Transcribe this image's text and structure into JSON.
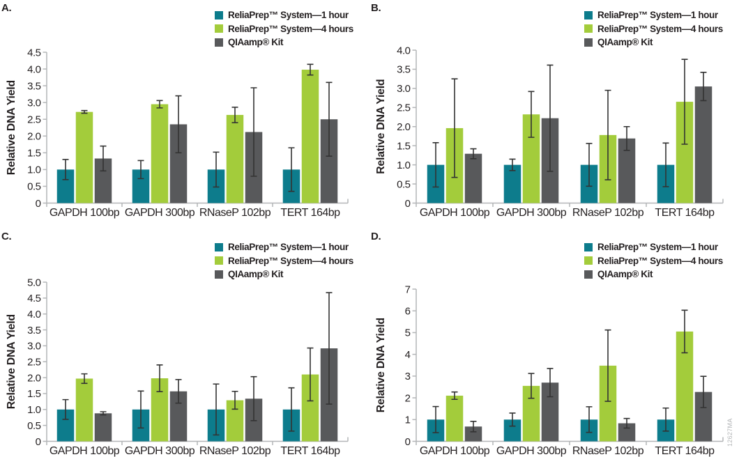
{
  "figure": {
    "watermark_code": "12627MA",
    "background": "#ffffff"
  },
  "colors": {
    "teal": "#0d7c8c",
    "green": "#a3cc3b",
    "gray": "#58595b",
    "axis": "#b3b5b7",
    "error": "#333333",
    "text": "#231f20",
    "watermark": "#b3b5b7"
  },
  "legend": {
    "position": "top-right",
    "items": [
      {
        "label": "ReliaPrep™ System—1 hour",
        "color_key": "teal"
      },
      {
        "label": "ReliaPrep™ System—4 hours",
        "color_key": "green"
      },
      {
        "label": "QIAamp® Kit",
        "color_key": "gray"
      }
    ]
  },
  "chart_data": [
    {
      "panel_label": "A.",
      "type": "bar",
      "title": "",
      "xlabel": "",
      "ylabel": "Relative DNA Yield",
      "grid": false,
      "legend_position": "top-right",
      "categories": [
        "GAPDH 100bp",
        "GAPDH 300bp",
        "RNaseP 102bp",
        "TERT 164bp"
      ],
      "ylim": [
        0,
        4.5
      ],
      "yticks": [
        0,
        0.5,
        1.0,
        1.5,
        2.0,
        2.5,
        3.0,
        3.5,
        4.0,
        4.5
      ],
      "ytick_labels": [
        "0",
        "0.5",
        "1.0",
        "1.5",
        "2.0",
        "2.5",
        "3.0",
        "3.5",
        "4.0",
        "4.5"
      ],
      "series": [
        {
          "name": "ReliaPrep™ System—1 hour",
          "color_key": "teal",
          "values": [
            1.0,
            1.0,
            1.0,
            1.0
          ],
          "errors": [
            0.3,
            0.27,
            0.52,
            0.65
          ]
        },
        {
          "name": "ReliaPrep™ System—4 hours",
          "color_key": "green",
          "values": [
            2.72,
            2.95,
            2.63,
            3.98
          ],
          "errors": [
            0.04,
            0.11,
            0.23,
            0.16
          ]
        },
        {
          "name": "QIAamp® Kit",
          "color_key": "gray",
          "values": [
            1.33,
            2.35,
            2.12,
            2.5
          ],
          "errors": [
            0.37,
            0.85,
            1.32,
            1.1
          ]
        }
      ]
    },
    {
      "panel_label": "B.",
      "type": "bar",
      "title": "",
      "xlabel": "",
      "ylabel": "Relative DNA Yield",
      "grid": false,
      "legend_position": "top-right",
      "categories": [
        "GAPDH 100bp",
        "GAPDH 300bp",
        "RNaseP 102bp",
        "TERT 164bp"
      ],
      "ylim": [
        0,
        4.0
      ],
      "yticks": [
        0,
        0.5,
        1.0,
        1.5,
        2.0,
        2.5,
        3.0,
        3.5,
        4.0
      ],
      "ytick_labels": [
        "0",
        "0.5",
        "1.0",
        "1.5",
        "2.0",
        "2.5",
        "3.0",
        "3.5",
        "4.0"
      ],
      "series": [
        {
          "name": "ReliaPrep™ System—1 hour",
          "color_key": "teal",
          "values": [
            1.0,
            1.0,
            1.0,
            1.0
          ],
          "errors": [
            0.58,
            0.15,
            0.56,
            0.57
          ]
        },
        {
          "name": "ReliaPrep™ System—4 hours",
          "color_key": "green",
          "values": [
            1.96,
            2.32,
            1.78,
            2.65
          ],
          "errors": [
            1.29,
            0.6,
            1.17,
            1.11
          ]
        },
        {
          "name": "QIAamp® Kit",
          "color_key": "gray",
          "values": [
            1.29,
            2.22,
            1.69,
            3.05
          ],
          "errors": [
            0.13,
            1.39,
            0.31,
            0.37
          ]
        }
      ]
    },
    {
      "panel_label": "C.",
      "type": "bar",
      "title": "",
      "xlabel": "",
      "ylabel": "Relative DNA Yield",
      "grid": false,
      "legend_position": "top-right",
      "categories": [
        "GAPDH 100bp",
        "GAPDH 300bp",
        "RNaseP 102bp",
        "TERT 164bp"
      ],
      "ylim": [
        0,
        5.0
      ],
      "yticks": [
        0,
        0.5,
        1.0,
        1.5,
        2.0,
        2.5,
        3.0,
        3.5,
        4.0,
        4.5,
        5.0
      ],
      "ytick_labels": [
        "0",
        "0.5",
        "1.0",
        "1.5",
        "2.0",
        "2.5",
        "3.0",
        "3.5",
        "4.0",
        "4.5",
        "5.0"
      ],
      "series": [
        {
          "name": "ReliaPrep™ System—1 hour",
          "color_key": "teal",
          "values": [
            1.0,
            1.0,
            1.0,
            1.0
          ],
          "errors": [
            0.31,
            0.58,
            0.8,
            0.68
          ]
        },
        {
          "name": "ReliaPrep™ System—4 hours",
          "color_key": "green",
          "values": [
            1.97,
            1.98,
            1.29,
            2.1
          ],
          "errors": [
            0.15,
            0.42,
            0.28,
            0.83
          ]
        },
        {
          "name": "QIAamp® Kit",
          "color_key": "gray",
          "values": [
            0.88,
            1.57,
            1.34,
            2.92
          ],
          "errors": [
            0.05,
            0.37,
            0.69,
            1.75
          ]
        }
      ]
    },
    {
      "panel_label": "D.",
      "type": "bar",
      "title": "",
      "xlabel": "",
      "ylabel": "Relative DNA Yield",
      "grid": false,
      "legend_position": "top-right",
      "categories": [
        "GAPDH 100bp",
        "GAPDH 300bp",
        "RNaseP 102bp",
        "TERT 164bp"
      ],
      "ylim": [
        0,
        7
      ],
      "yticks": [
        0,
        1,
        2,
        3,
        4,
        5,
        6,
        7
      ],
      "ytick_labels": [
        "0",
        "1",
        "2",
        "3",
        "4",
        "5",
        "6",
        "7"
      ],
      "series": [
        {
          "name": "ReliaPrep™ System—1 hour",
          "color_key": "teal",
          "values": [
            1.0,
            1.0,
            1.0,
            1.0
          ],
          "errors": [
            0.6,
            0.3,
            0.59,
            0.53
          ]
        },
        {
          "name": "ReliaPrep™ System—4 hours",
          "color_key": "green",
          "values": [
            2.1,
            2.55,
            3.48,
            5.05
          ],
          "errors": [
            0.17,
            0.57,
            1.64,
            0.98
          ]
        },
        {
          "name": "QIAamp® Kit",
          "color_key": "gray",
          "values": [
            0.68,
            2.7,
            0.83,
            2.27
          ],
          "errors": [
            0.24,
            0.65,
            0.22,
            0.72
          ]
        }
      ]
    }
  ]
}
